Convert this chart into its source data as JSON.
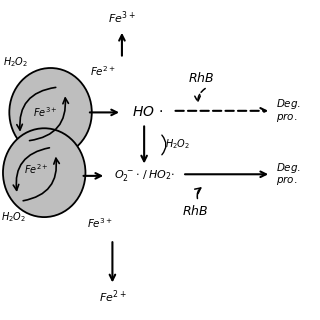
{
  "bg_color": "#ffffff",
  "fg_color": "#000000",
  "gray_circle": "#bebebe",
  "fig_size": [
    3.2,
    3.2
  ],
  "dpi": 100
}
